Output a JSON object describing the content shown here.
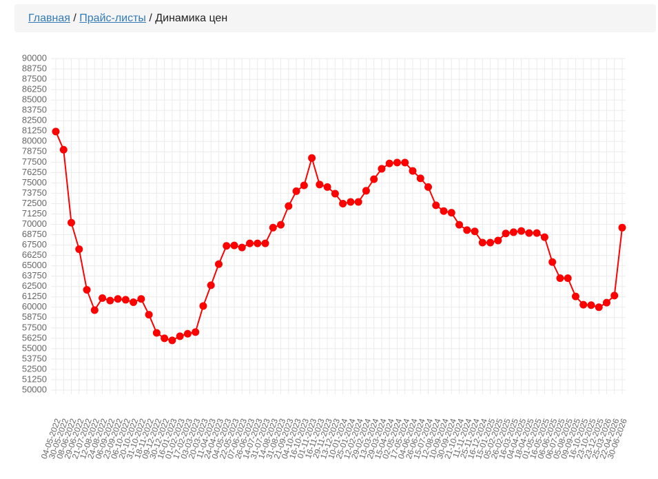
{
  "breadcrumb": {
    "items": [
      "Главная",
      "Прайс-листы",
      "Динамика цен"
    ],
    "separator": "/"
  },
  "chart_data": {
    "type": "line",
    "categories": [
      "04-05-2022",
      "30-05-2022",
      "08-06-2022",
      "29-06-2022",
      "21-07-2022",
      "12-08-2022",
      "24-08-2022",
      "06-09-2022",
      "23-09-2022",
      "06-10-2022",
      "20-10-2022",
      "31-10-2022",
      "18-11-2022",
      "09-12-2022",
      "30-12-2022",
      "16-01-2023",
      "01-02-2023",
      "17-02-2023",
      "03-03-2023",
      "20-03-2023",
      "11-04-2023",
      "24-04-2023",
      "04-05-2023",
      "22-05-2023",
      "07-06-2023",
      "26-06-2023",
      "14-07-2023",
      "31-07-2023",
      "14-08-2023",
      "31-08-2023",
      "21-09-2023",
      "04-10-2023",
      "16-10-2023",
      "01-11-2023",
      "16-11-2023",
      "29-11-2023",
      "13-12-2023",
      "10-01-2024",
      "25-01-2024",
      "12-02-2024",
      "29-02-2024",
      "13-03-2024",
      "29-03-2024",
      "15-04-2024",
      "02-05-2024",
      "17-05-2024",
      "04-06-2024",
      "26-06-2024",
      "15-07-2024",
      "12-08-2024",
      "10-09-2024",
      "30-09-2024",
      "21-10-2024",
      "11-11-2024",
      "25-11-2024",
      "16-12-2024",
      "15-01-2025",
      "05-02-2025",
      "26-02-2025",
      "16-03-2025",
      "04-04-2025",
      "18-04-2025",
      "01-05-2025",
      "16-05-2025",
      "06-06-2025",
      "06-07-2025",
      "05-08-2025",
      "09-09-2025",
      "16-10-2025",
      "23-10-2025",
      "23-12-2025",
      "25-03-2026",
      "22-04-2026",
      "30-06-2026"
    ],
    "values": [
      81200,
      79000,
      70200,
      67000,
      62100,
      59650,
      61100,
      60800,
      61000,
      60900,
      60600,
      61000,
      59100,
      56900,
      56250,
      56000,
      56500,
      56800,
      57000,
      60150,
      62650,
      65200,
      67400,
      67450,
      67200,
      67700,
      67700,
      67700,
      69600,
      69950,
      72200,
      74000,
      74700,
      78000,
      74800,
      74500,
      73700,
      72500,
      72700,
      72700,
      74050,
      75450,
      76700,
      77350,
      77450,
      77450,
      76450,
      75550,
      74500,
      72300,
      71600,
      71400,
      69950,
      69300,
      69150,
      67800,
      67800,
      68050,
      68900,
      69050,
      69200,
      68950,
      68950,
      68450,
      65450,
      63500,
      63500,
      61300,
      60300,
      60250,
      60000,
      60550,
      61400,
      69600
    ],
    "color": "#ff0000",
    "ylim": [
      50000,
      90000
    ],
    "yticks": [
      50000,
      51250,
      52500,
      53750,
      55000,
      56250,
      57500,
      58750,
      60000,
      61250,
      62500,
      63750,
      65000,
      66250,
      67500,
      68750,
      70000,
      71250,
      72500,
      73750,
      75000,
      76250,
      77500,
      78750,
      80000,
      81250,
      82500,
      83750,
      85000,
      86250,
      87500,
      88750,
      90000
    ],
    "grid": true
  }
}
